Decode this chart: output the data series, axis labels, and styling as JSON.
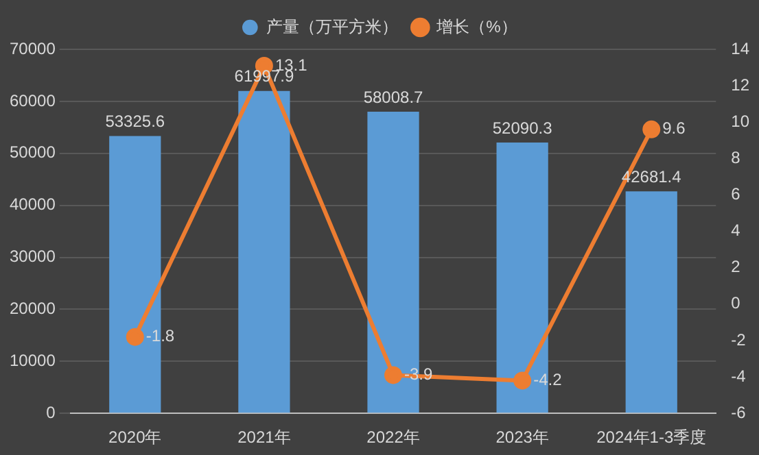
{
  "chart_data": {
    "type": "bar",
    "categories": [
      "2020年",
      "2021年",
      "2022年",
      "2023年",
      "2024年1-3季度"
    ],
    "series": [
      {
        "name": "产量（万平方米）",
        "color": "#5b9bd5",
        "values": [
          53325.6,
          61997.9,
          58008.7,
          52090.3,
          42681.4
        ]
      },
      {
        "name": "增长（%）",
        "type": "line",
        "axis": "y2",
        "color": "#ed7d31",
        "values": [
          -1.8,
          13.1,
          -3.9,
          -4.2,
          9.6
        ]
      }
    ],
    "ylim": [
      0,
      70000
    ],
    "yticks": [
      0,
      10000,
      20000,
      30000,
      40000,
      50000,
      60000,
      70000
    ],
    "y2lim": [
      -6,
      14
    ],
    "y2ticks": [
      -6,
      -4,
      -2,
      0,
      2,
      4,
      6,
      8,
      10,
      12,
      14
    ],
    "grid": "y",
    "legend": "top",
    "marker": "circle",
    "data_labels": true
  }
}
